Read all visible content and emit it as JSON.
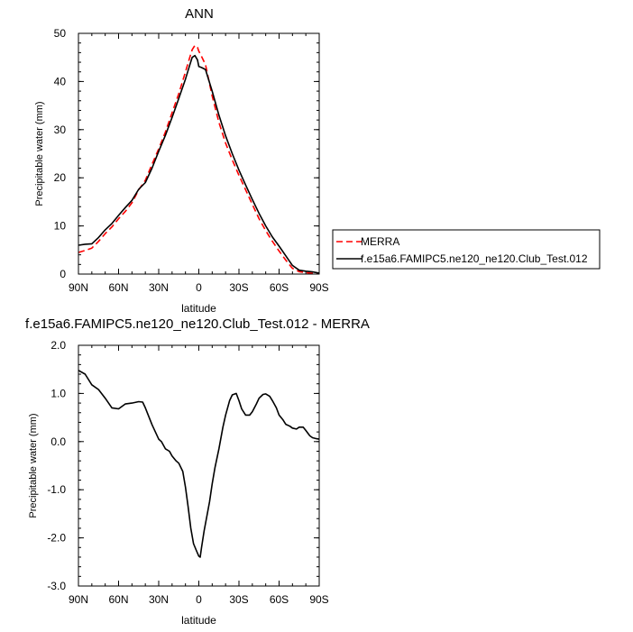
{
  "chart_data": [
    {
      "type": "line",
      "title": "ANN",
      "xlabel": "latitude",
      "ylabel": "Precipitable water (mm)",
      "xlim": [
        90,
        -90
      ],
      "ylim": [
        0,
        50
      ],
      "x_ticks": [
        {
          "value": 90,
          "label": "90N"
        },
        {
          "value": 60,
          "label": "60N"
        },
        {
          "value": 30,
          "label": "30N"
        },
        {
          "value": 0,
          "label": "0"
        },
        {
          "value": -30,
          "label": "30S"
        },
        {
          "value": -60,
          "label": "60S"
        },
        {
          "value": -90,
          "label": "90S"
        }
      ],
      "y_ticks": [
        {
          "value": 0,
          "label": "0"
        },
        {
          "value": 10,
          "label": "10"
        },
        {
          "value": 20,
          "label": "20"
        },
        {
          "value": 30,
          "label": "30"
        },
        {
          "value": 40,
          "label": "40"
        },
        {
          "value": 50,
          "label": "50"
        }
      ],
      "grid": false,
      "legend_position": "right",
      "series": [
        {
          "name": "MERRA",
          "color": "#ff0000",
          "dashed": true,
          "x": [
            90,
            85,
            80,
            75,
            70,
            65,
            60,
            55,
            50,
            45,
            40,
            35,
            30,
            25,
            20,
            15,
            10,
            7,
            5,
            3,
            1,
            0,
            -2,
            -5,
            -10,
            -15,
            -20,
            -25,
            -30,
            -35,
            -40,
            -45,
            -50,
            -55,
            -60,
            -65,
            -70,
            -75,
            -80,
            -85,
            -90
          ],
          "y": [
            4.5,
            4.9,
            5.4,
            6.8,
            8.4,
            9.8,
            11.5,
            13.0,
            14.8,
            17.5,
            19.5,
            22.8,
            26.0,
            29.5,
            33.5,
            37.5,
            42.0,
            44.8,
            46.6,
            47.5,
            47.1,
            46.3,
            45.2,
            43.5,
            37.0,
            31.5,
            27.2,
            23.7,
            20.5,
            17.5,
            14.5,
            11.5,
            9.0,
            6.8,
            4.8,
            2.9,
            1.2,
            0.5,
            0.3,
            0.15,
            0.1
          ]
        },
        {
          "name": "f.e15a6.FAMIPC5.ne120_ne120.Club_Test.012",
          "color": "#000000",
          "dashed": false,
          "x": [
            90,
            85,
            80,
            75,
            70,
            65,
            60,
            55,
            50,
            45,
            40,
            35,
            30,
            25,
            20,
            15,
            10,
            7,
            5,
            3,
            1,
            0,
            -2,
            -5,
            -10,
            -15,
            -20,
            -25,
            -30,
            -35,
            -40,
            -45,
            -50,
            -55,
            -60,
            -65,
            -70,
            -75,
            -80,
            -85,
            -90
          ],
          "y": [
            6.0,
            6.2,
            6.3,
            7.6,
            9.2,
            10.5,
            12.2,
            13.8,
            15.3,
            17.6,
            19.0,
            22.0,
            25.5,
            28.8,
            32.5,
            36.5,
            40.5,
            43.2,
            45.0,
            45.4,
            44.5,
            43.1,
            42.9,
            42.5,
            38.0,
            33.0,
            28.7,
            25.0,
            21.6,
            18.5,
            15.5,
            12.6,
            10.0,
            7.7,
            5.8,
            3.8,
            1.8,
            0.8,
            0.6,
            0.45,
            0.2
          ]
        }
      ]
    },
    {
      "type": "line",
      "title": "f.e15a6.FAMIPC5.ne120_ne120.Club_Test.012 - MERRA",
      "xlabel": "latitude",
      "ylabel": "Precipitable water (mm)",
      "xlim": [
        90,
        -90
      ],
      "ylim": [
        -3.0,
        2.0
      ],
      "x_ticks": [
        {
          "value": 90,
          "label": "90N"
        },
        {
          "value": 60,
          "label": "60N"
        },
        {
          "value": 30,
          "label": "30N"
        },
        {
          "value": 0,
          "label": "0"
        },
        {
          "value": -30,
          "label": "30S"
        },
        {
          "value": -60,
          "label": "60S"
        },
        {
          "value": -90,
          "label": "90S"
        }
      ],
      "y_ticks": [
        {
          "value": -3.0,
          "label": "-3.0"
        },
        {
          "value": -2.0,
          "label": "-2.0"
        },
        {
          "value": -1.0,
          "label": "-1.0"
        },
        {
          "value": 0.0,
          "label": "0.0"
        },
        {
          "value": 1.0,
          "label": "1.0"
        },
        {
          "value": 2.0,
          "label": "2.0"
        }
      ],
      "grid": false,
      "series": [
        {
          "color": "#000000",
          "dashed": false,
          "x": [
            90,
            85,
            80,
            75,
            70,
            65,
            60,
            55,
            50,
            45,
            42,
            40,
            35,
            30,
            28,
            25,
            22,
            20,
            17,
            15,
            12,
            10,
            8,
            6,
            4,
            2,
            0,
            -1,
            -2,
            -4,
            -6,
            -8,
            -10,
            -12,
            -15,
            -18,
            -20,
            -23,
            -25,
            -28,
            -30,
            -32,
            -35,
            -38,
            -40,
            -43,
            -45,
            -48,
            -50,
            -53,
            -55,
            -58,
            -60,
            -63,
            -65,
            -68,
            -70,
            -73,
            -75,
            -78,
            -80,
            -83,
            -85,
            -88,
            -90
          ],
          "y": [
            1.48,
            1.4,
            1.18,
            1.08,
            0.9,
            0.7,
            0.68,
            0.78,
            0.8,
            0.83,
            0.82,
            0.7,
            0.35,
            0.05,
            0.0,
            -0.15,
            -0.2,
            -0.3,
            -0.4,
            -0.45,
            -0.62,
            -0.95,
            -1.35,
            -1.8,
            -2.12,
            -2.25,
            -2.38,
            -2.4,
            -2.2,
            -1.85,
            -1.55,
            -1.25,
            -0.88,
            -0.55,
            -0.15,
            0.3,
            0.55,
            0.85,
            0.97,
            1.0,
            0.85,
            0.68,
            0.55,
            0.55,
            0.62,
            0.78,
            0.9,
            0.98,
            0.99,
            0.94,
            0.85,
            0.7,
            0.55,
            0.45,
            0.36,
            0.32,
            0.28,
            0.26,
            0.3,
            0.3,
            0.23,
            0.12,
            0.08,
            0.06,
            0.05
          ]
        }
      ]
    }
  ]
}
